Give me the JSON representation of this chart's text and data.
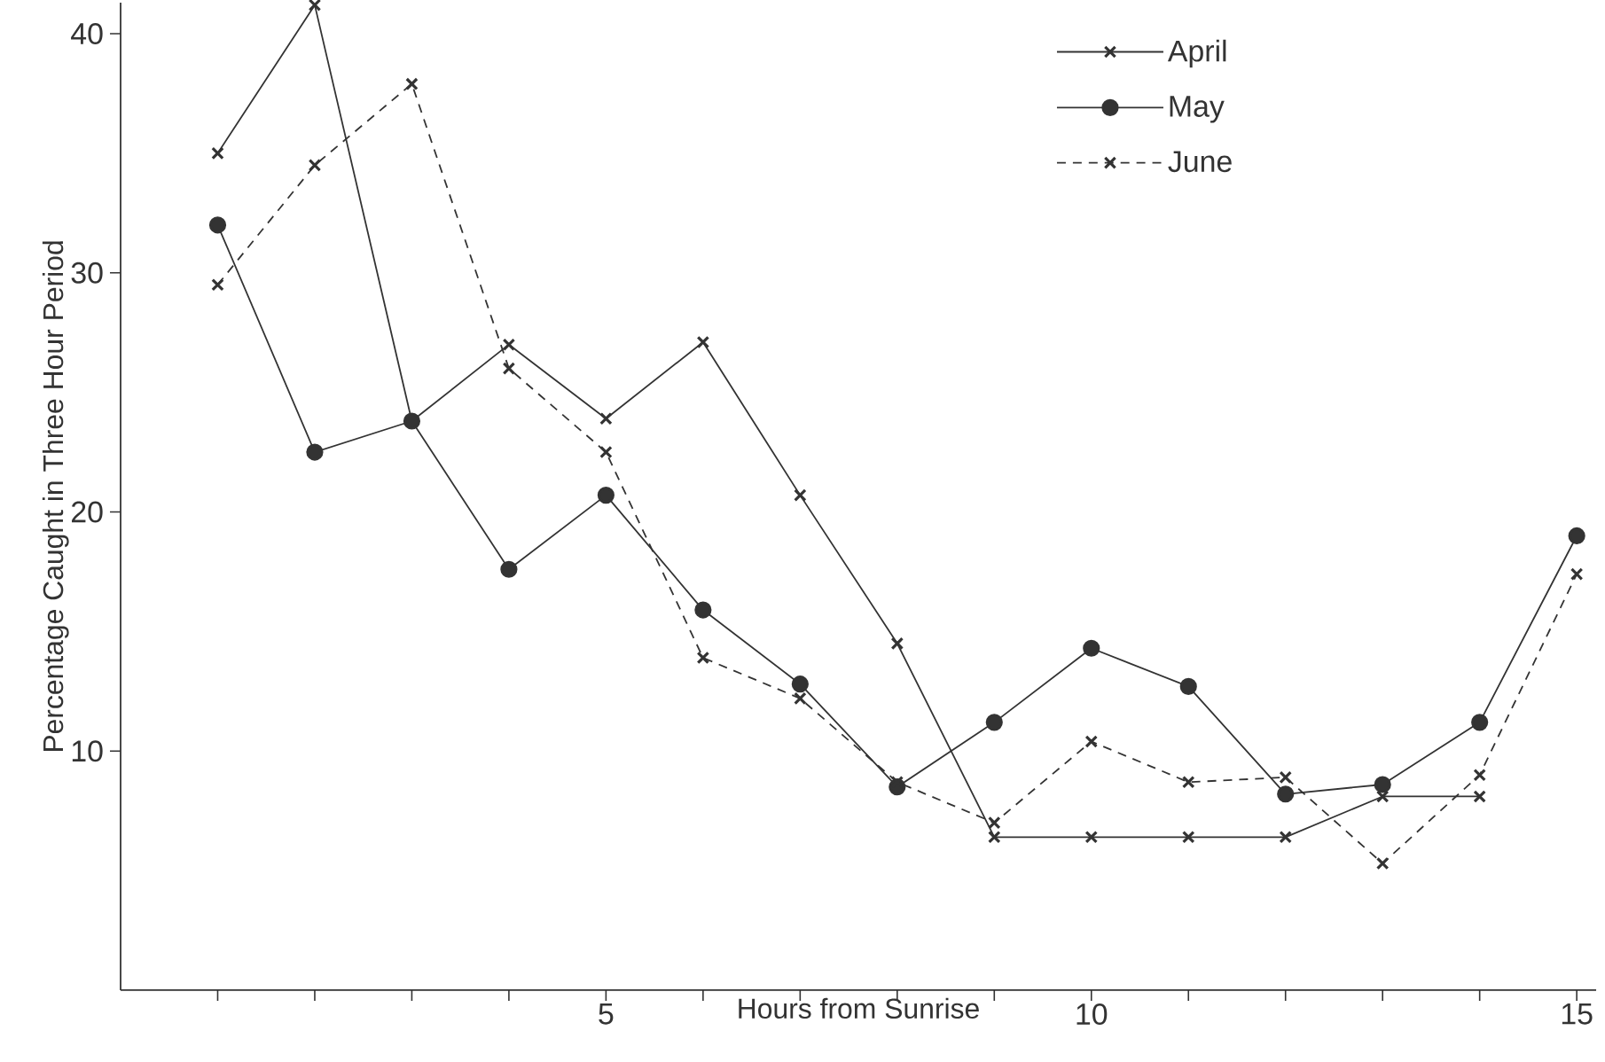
{
  "chart_data": {
    "type": "line",
    "xlabel": "Hours from Sunrise",
    "ylabel": "Percentage Caught in Three Hour Period",
    "x": [
      1,
      2,
      3,
      4,
      5,
      6,
      7,
      8,
      9,
      10,
      11,
      12,
      13,
      14,
      15
    ],
    "series": [
      {
        "name": "April",
        "color": "#333333",
        "marker": "cross",
        "line_style": "solid",
        "x": [
          1,
          2,
          3,
          4,
          5,
          6,
          7,
          8,
          9,
          10,
          11,
          12,
          13,
          14
        ],
        "values": [
          35.0,
          41.2,
          23.8,
          27.0,
          23.9,
          27.1,
          20.7,
          14.5,
          6.4,
          6.4,
          6.4,
          6.4,
          8.1,
          8.1
        ]
      },
      {
        "name": "May",
        "color": "#333333",
        "marker": "circle",
        "line_style": "solid",
        "values": [
          32.0,
          22.5,
          23.8,
          17.6,
          20.7,
          15.9,
          12.8,
          8.5,
          11.2,
          14.3,
          12.7,
          8.2,
          8.6,
          11.2,
          19.0
        ]
      },
      {
        "name": "June",
        "color": "#333333",
        "marker": "cross",
        "line_style": "dashed",
        "values": [
          29.5,
          34.5,
          37.9,
          26.0,
          22.5,
          13.9,
          12.2,
          8.7,
          7.0,
          10.4,
          8.7,
          8.9,
          5.3,
          9.0,
          17.4
        ]
      }
    ],
    "xlim": [
      0,
      15.2
    ],
    "ylim": [
      0,
      41.3
    ],
    "xticks": [
      {
        "value": 1,
        "label": null
      },
      {
        "value": 2,
        "label": null
      },
      {
        "value": 3,
        "label": null
      },
      {
        "value": 4,
        "label": null
      },
      5,
      {
        "value": 6,
        "label": null
      },
      {
        "value": 7,
        "label": null
      },
      {
        "value": 8,
        "label": null
      },
      {
        "value": 9,
        "label": null
      },
      10,
      {
        "value": 11,
        "label": null
      },
      {
        "value": 12,
        "label": null
      },
      {
        "value": 13,
        "label": null
      },
      {
        "value": 14,
        "label": null
      },
      15
    ],
    "yticks": [
      10,
      20,
      30,
      40
    ],
    "legend": "top right",
    "grid": false
  }
}
